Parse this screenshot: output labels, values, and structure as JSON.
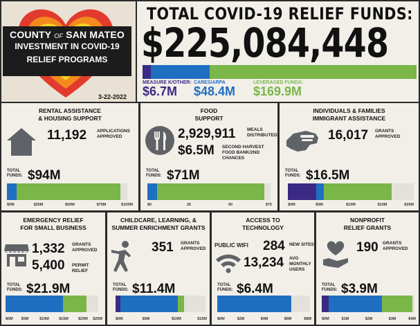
{
  "header": {
    "county": "COUNTY",
    "of": "OF",
    "san_mateo": "SAN MATEO",
    "line2": "INVESTMENT IN COVID-19",
    "line3": "RELIEF PROGRAMS",
    "date": "3-22-2022",
    "title": "TOTAL COVID-19 RELIEF FUNDS:",
    "total": "$225,084,448",
    "sources": [
      {
        "label": "MEASURE K/OTHER:",
        "amount": "$6.7M",
        "value": 6.7,
        "color": "#3a2a84"
      },
      {
        "label": "CARES/ARPA",
        "amount": "$48.4M",
        "value": 48.4,
        "color": "#1f6fc1"
      },
      {
        "label": "LEVERAGED FUNDS:",
        "amount": "$169.9M",
        "value": 169.9,
        "color": "#7ab648"
      }
    ]
  },
  "colors": {
    "measure": "#3a2a84",
    "cares": "#1f6fc1",
    "leveraged": "#7ab648",
    "track": "#e4e1db"
  },
  "total_funds_label": "TOTAL FUNDS:",
  "panels": {
    "rental": {
      "title1": "RENTAL ASSISTANCE",
      "title2": "& HOUSING SUPPORT",
      "num": "11,192",
      "num_label": "APPLICATIONS APPROVED",
      "total": "$94M",
      "segments": [
        0,
        8,
        86
      ],
      "max": 100,
      "ticks": [
        "$0M",
        "$25M",
        "$50M",
        "$75M",
        "$100M"
      ]
    },
    "food": {
      "title1": "FOOD",
      "title2": "SUPPORT",
      "num": "2,929,911",
      "num_label": "MEALS DISTRIBUTED",
      "num2": "$6.5M",
      "num2_label": "SECOND HARVEST FOOD BANK/2ND CHANCES",
      "total": "$71M",
      "segments": [
        0,
        6,
        65
      ],
      "max": 75,
      "ticks": [
        "$0",
        "25",
        "50",
        "$75"
      ]
    },
    "individuals": {
      "title1": "INDIVIDUALS & FAMILIES",
      "title2": "IMMIGRANT ASSISTANCE",
      "num": "16,017",
      "num_label": "GRANTS APPROVED",
      "total": "$16.5M",
      "segments": [
        4.5,
        1.2,
        10.8
      ],
      "max": 20,
      "ticks": [
        "$0M",
        "$5M",
        "$10M",
        "$15M",
        "$20M"
      ]
    },
    "emergency": {
      "title1": "EMERGENCY RELIEF",
      "title2": "FOR SMALL BUSINESS",
      "num": "1,332",
      "num_label": "GRANTS APPROVED",
      "num2": "5,400",
      "num2_label": "PERMIT RELIEF",
      "total": "$21.9M",
      "segments": [
        0,
        15.5,
        6.4
      ],
      "max": 25,
      "ticks": [
        "$0M",
        "$5M",
        "$10M",
        "$15M",
        "$20M",
        "$25M"
      ]
    },
    "childcare": {
      "title1": "CHILDCARE, LEARNING, &",
      "title2": "SUMMER ENRICHMENT GRANTS",
      "num": "351",
      "num_label": "GRANTS APPROVED",
      "total": "$11.4M",
      "segments": [
        0.8,
        9.6,
        1.0
      ],
      "max": 15,
      "ticks": [
        "$0M",
        "$5M",
        "$10M",
        "$15M"
      ]
    },
    "technology": {
      "title1": "ACCESS TO",
      "title2": "TECHNOLOGY",
      "wifi_label": "PUBLIC WIFI",
      "num": "284",
      "num_label": "NEW SITES",
      "num2": "13,234",
      "num2_label": "AVG MONTHLY USERS",
      "total": "$6.4M",
      "segments": [
        0,
        6.4,
        0
      ],
      "max": 8,
      "ticks": [
        "$0M",
        "$2M",
        "$4M",
        "$6M",
        "$8M"
      ]
    },
    "nonprofit": {
      "title1": "NONPROFIT",
      "title2": "RELIEF GRANTS",
      "num": "190",
      "num_label": "GRANTS APPROVED",
      "total": "$3.9M",
      "segments": [
        0.3,
        2.3,
        1.3
      ],
      "max": 4,
      "ticks": [
        "$0M",
        "$1M",
        "$2M",
        "$3M",
        "$4M"
      ]
    }
  }
}
